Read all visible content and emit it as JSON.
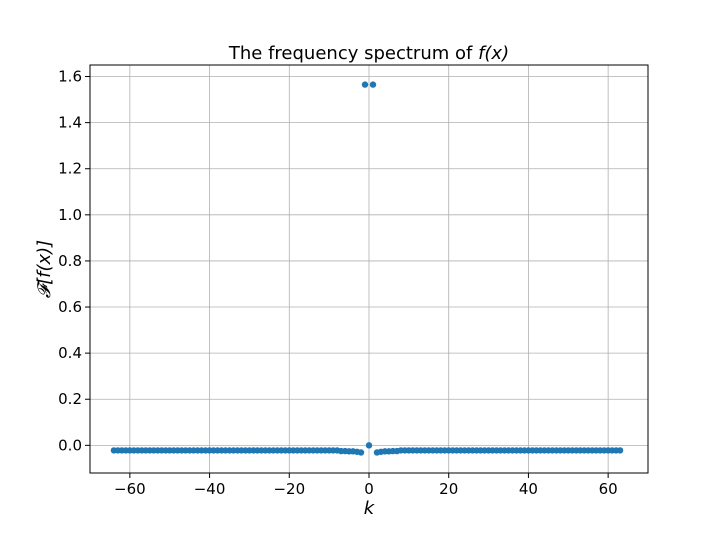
{
  "chart_data": {
    "type": "scatter",
    "title_main": "The frequency spectrum of ",
    "title_math": "f(x)",
    "xlabel": "k",
    "ylabel": "𝓕[f(x)]",
    "xlim": [
      -70,
      70
    ],
    "ylim": [
      -0.12,
      1.65
    ],
    "xticks": [
      -60,
      -40,
      -20,
      0,
      20,
      40,
      60
    ],
    "xtick_labels": [
      "−60",
      "−40",
      "−20",
      "0",
      "20",
      "40",
      "60"
    ],
    "yticks": [
      0.0,
      0.2,
      0.4,
      0.6,
      0.8,
      1.0,
      1.2,
      1.4,
      1.6
    ],
    "ytick_labels": [
      "0.0",
      "0.2",
      "0.4",
      "0.6",
      "0.8",
      "1.0",
      "1.2",
      "1.4",
      "1.6"
    ],
    "grid": true,
    "marker_color": "#1f77b4",
    "x": [
      -64,
      -63,
      -62,
      -61,
      -60,
      -59,
      -58,
      -57,
      -56,
      -55,
      -54,
      -53,
      -52,
      -51,
      -50,
      -49,
      -48,
      -47,
      -46,
      -45,
      -44,
      -43,
      -42,
      -41,
      -40,
      -39,
      -38,
      -37,
      -36,
      -35,
      -34,
      -33,
      -32,
      -31,
      -30,
      -29,
      -28,
      -27,
      -26,
      -25,
      -24,
      -23,
      -22,
      -21,
      -20,
      -19,
      -18,
      -17,
      -16,
      -15,
      -14,
      -13,
      -12,
      -11,
      -10,
      -9,
      -8,
      -7,
      -6,
      -5,
      -4,
      -3,
      -2,
      -1,
      0,
      1,
      2,
      3,
      4,
      5,
      6,
      7,
      8,
      9,
      10,
      11,
      12,
      13,
      14,
      15,
      16,
      17,
      18,
      19,
      20,
      21,
      22,
      23,
      24,
      25,
      26,
      27,
      28,
      29,
      30,
      31,
      32,
      33,
      34,
      35,
      36,
      37,
      38,
      39,
      40,
      41,
      42,
      43,
      44,
      45,
      46,
      47,
      48,
      49,
      50,
      51,
      52,
      53,
      54,
      55,
      56,
      57,
      58,
      59,
      60,
      61,
      62,
      63
    ],
    "y": [
      -0.022,
      -0.022,
      -0.022,
      -0.022,
      -0.022,
      -0.022,
      -0.022,
      -0.022,
      -0.022,
      -0.022,
      -0.022,
      -0.022,
      -0.022,
      -0.022,
      -0.022,
      -0.022,
      -0.022,
      -0.022,
      -0.022,
      -0.022,
      -0.022,
      -0.022,
      -0.022,
      -0.022,
      -0.022,
      -0.022,
      -0.022,
      -0.022,
      -0.022,
      -0.022,
      -0.022,
      -0.022,
      -0.022,
      -0.022,
      -0.022,
      -0.022,
      -0.022,
      -0.022,
      -0.022,
      -0.022,
      -0.022,
      -0.022,
      -0.022,
      -0.022,
      -0.022,
      -0.022,
      -0.022,
      -0.022,
      -0.022,
      -0.022,
      -0.022,
      -0.022,
      -0.022,
      -0.022,
      -0.022,
      -0.022,
      -0.022,
      -0.025,
      -0.025,
      -0.026,
      -0.026,
      -0.028,
      -0.031,
      1.565,
      0.0,
      1.565,
      -0.031,
      -0.028,
      -0.026,
      -0.026,
      -0.025,
      -0.025,
      -0.022,
      -0.022,
      -0.022,
      -0.022,
      -0.022,
      -0.022,
      -0.022,
      -0.022,
      -0.022,
      -0.022,
      -0.022,
      -0.022,
      -0.022,
      -0.022,
      -0.022,
      -0.022,
      -0.022,
      -0.022,
      -0.022,
      -0.022,
      -0.022,
      -0.022,
      -0.022,
      -0.022,
      -0.022,
      -0.022,
      -0.022,
      -0.022,
      -0.022,
      -0.022,
      -0.022,
      -0.022,
      -0.022,
      -0.022,
      -0.022,
      -0.022,
      -0.022,
      -0.022,
      -0.022,
      -0.022,
      -0.022,
      -0.022,
      -0.022,
      -0.022,
      -0.022,
      -0.022,
      -0.022,
      -0.022,
      -0.022,
      -0.022,
      -0.022,
      -0.022,
      -0.022,
      -0.022,
      -0.022,
      -0.022
    ]
  }
}
